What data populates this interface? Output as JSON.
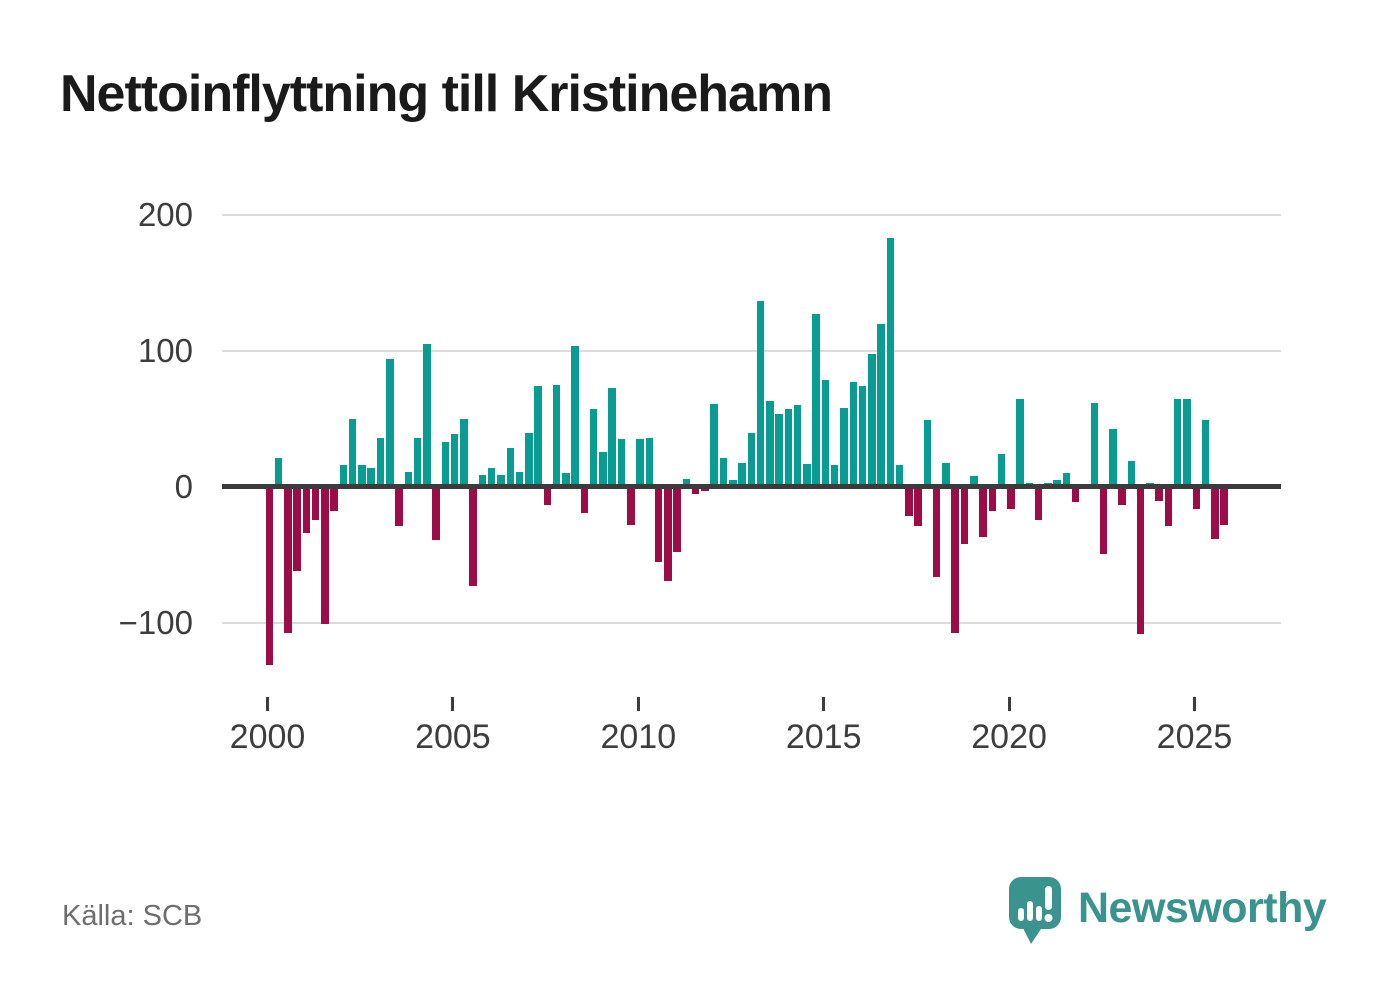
{
  "title": "Nettoinflyttning till Kristinehamn",
  "source_label": "Källa: SCB",
  "logo": {
    "brand": "Newsworthy",
    "color": "#3a948d"
  },
  "colors": {
    "positive_bar": "#089c93",
    "negative_bar": "#9c0d47",
    "gridline": "#dcdcdc",
    "zero_axis": "#3b3b3b",
    "axis_text": "#3d3d3d",
    "title_text": "#1a1a1a",
    "source_text": "#6e6e6e"
  },
  "chart_data": {
    "type": "bar",
    "title": "Nettoinflyttning till Kristinehamn",
    "frequency": "quarterly",
    "start_period": "2000 Q1",
    "end_period": "2025 Q4",
    "xlabel": "",
    "ylabel": "",
    "grid": true,
    "legend": "none",
    "ylim": [
      -145,
      215
    ],
    "y_ticks": [
      200,
      100,
      0,
      -100
    ],
    "y_tick_labels": [
      "200",
      "100",
      "0",
      "−100"
    ],
    "x_tick_labels": [
      "2000",
      "2005",
      "2010",
      "2015",
      "2020",
      "2025"
    ],
    "values": [
      -131,
      21,
      -107,
      -62,
      -34,
      -24,
      -101,
      -18,
      16,
      50,
      16,
      14,
      36,
      94,
      -29,
      11,
      36,
      105,
      -39,
      33,
      39,
      50,
      -73,
      9,
      14,
      9,
      29,
      11,
      40,
      74,
      -13,
      75,
      10,
      104,
      -19,
      57,
      26,
      73,
      35,
      -28,
      35,
      36,
      -55,
      -69,
      -48,
      6,
      -5,
      -3,
      61,
      21,
      5,
      18,
      40,
      137,
      63,
      54,
      57,
      60,
      17,
      127,
      79,
      16,
      58,
      77,
      74,
      98,
      120,
      183,
      16,
      -21,
      -29,
      49,
      -66,
      18,
      -107,
      -42,
      8,
      -37,
      -18,
      24,
      -16,
      65,
      3,
      -24,
      3,
      5,
      10,
      -11,
      0,
      62,
      -49,
      43,
      -13,
      19,
      -108,
      3,
      -10,
      -29,
      65,
      65,
      -16,
      49,
      -38,
      -28
    ]
  }
}
